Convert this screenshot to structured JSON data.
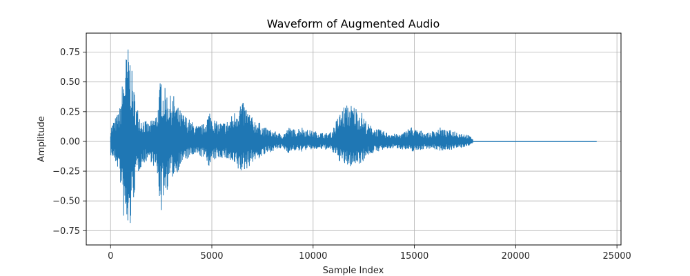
{
  "chart_data": {
    "type": "line",
    "title": "Waveform of Augmented Audio",
    "xlabel": "Sample Index",
    "ylabel": "Amplitude",
    "xlim": [
      -1200,
      25200
    ],
    "ylim": [
      -0.87,
      0.91
    ],
    "xticks": [
      0,
      5000,
      10000,
      15000,
      20000,
      25000
    ],
    "xtick_labels": [
      "0",
      "5000",
      "10000",
      "15000",
      "20000",
      "25000"
    ],
    "yticks": [
      -0.75,
      -0.5,
      -0.25,
      0.0,
      0.25,
      0.5,
      0.75
    ],
    "ytick_labels": [
      "−0.75",
      "−0.50",
      "−0.25",
      "0.00",
      "0.25",
      "0.50",
      "0.75"
    ],
    "grid": true,
    "line_color": "#1f77b4",
    "total_samples": 24000,
    "signal_end_sample": 17900,
    "envelope": {
      "x": [
        0,
        150,
        300,
        450,
        600,
        750,
        900,
        1000,
        1150,
        1300,
        1500,
        1700,
        1900,
        2100,
        2300,
        2500,
        2600,
        2700,
        2900,
        3100,
        3300,
        3500,
        3700,
        4000,
        4300,
        4600,
        4900,
        5200,
        5500,
        5800,
        6100,
        6400,
        6700,
        7000,
        7300,
        7600,
        7900,
        8200,
        8500,
        8800,
        9100,
        9400,
        9700,
        10000,
        10300,
        10600,
        10900,
        11200,
        11500,
        11800,
        12100,
        12400,
        12700,
        13000,
        13300,
        13600,
        13900,
        14200,
        14500,
        14800,
        15100,
        15400,
        15700,
        16000,
        16300,
        16600,
        16900,
        17200,
        17500,
        17900
      ],
      "upper": [
        0.12,
        0.18,
        0.22,
        0.28,
        0.53,
        0.72,
        0.83,
        0.68,
        0.45,
        0.3,
        0.22,
        0.18,
        0.15,
        0.2,
        0.25,
        0.59,
        0.45,
        0.45,
        0.38,
        0.4,
        0.3,
        0.25,
        0.22,
        0.17,
        0.13,
        0.15,
        0.27,
        0.17,
        0.16,
        0.18,
        0.25,
        0.35,
        0.3,
        0.2,
        0.17,
        0.12,
        0.1,
        0.08,
        0.06,
        0.12,
        0.1,
        0.13,
        0.1,
        0.09,
        0.08,
        0.07,
        0.08,
        0.2,
        0.3,
        0.32,
        0.3,
        0.25,
        0.15,
        0.12,
        0.1,
        0.08,
        0.07,
        0.06,
        0.08,
        0.13,
        0.1,
        0.09,
        0.07,
        0.1,
        0.12,
        0.09,
        0.1,
        0.08,
        0.07,
        0.03
      ],
      "lower": [
        -0.12,
        -0.16,
        -0.2,
        -0.28,
        -0.62,
        -0.77,
        -0.86,
        -0.7,
        -0.48,
        -0.3,
        -0.22,
        -0.18,
        -0.15,
        -0.2,
        -0.3,
        -0.63,
        -0.47,
        -0.47,
        -0.35,
        -0.3,
        -0.26,
        -0.2,
        -0.16,
        -0.13,
        -0.12,
        -0.14,
        -0.22,
        -0.15,
        -0.14,
        -0.16,
        -0.22,
        -0.27,
        -0.24,
        -0.18,
        -0.15,
        -0.12,
        -0.09,
        -0.07,
        -0.06,
        -0.1,
        -0.08,
        -0.09,
        -0.07,
        -0.07,
        -0.07,
        -0.07,
        -0.08,
        -0.15,
        -0.2,
        -0.22,
        -0.2,
        -0.18,
        -0.12,
        -0.1,
        -0.08,
        -0.07,
        -0.06,
        -0.06,
        -0.07,
        -0.09,
        -0.08,
        -0.07,
        -0.06,
        -0.07,
        -0.08,
        -0.07,
        -0.07,
        -0.06,
        -0.05,
        -0.02
      ]
    }
  }
}
